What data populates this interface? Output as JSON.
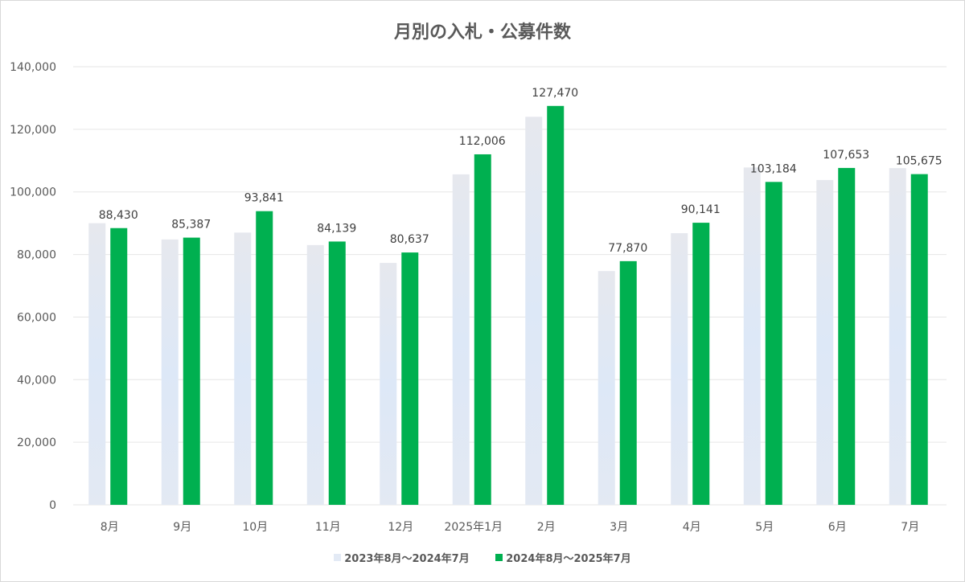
{
  "chart_data": {
    "type": "bar",
    "title": "月別の入札・公募件数",
    "categories": [
      "8月",
      "9月",
      "10月",
      "11月",
      "12月",
      "2025年1月",
      "2月",
      "3月",
      "4月",
      "5月",
      "6月",
      "7月"
    ],
    "series": [
      {
        "name": "2023年8月～2024年7月",
        "color": "#e3eaf5",
        "values": [
          90000,
          84800,
          87000,
          83000,
          77300,
          105600,
          124000,
          74700,
          86800,
          107800,
          103800,
          107600
        ]
      },
      {
        "name": "2024年8月～2025年7月",
        "color": "#00b050",
        "values": [
          88430,
          85387,
          93841,
          84139,
          80637,
          112006,
          127470,
          77870,
          90141,
          103184,
          107653,
          105675
        ],
        "data_labels": [
          "88,430",
          "85,387",
          "93,841",
          "84,139",
          "80,637",
          "112,006",
          "127,470",
          "77,870",
          "90,141",
          "103,184",
          "107,653",
          "105,675"
        ]
      }
    ],
    "yticks": [
      "0",
      "20,000",
      "40,000",
      "60,000",
      "80,000",
      "100,000",
      "120,000",
      "140,000"
    ],
    "ylim": [
      0,
      140000
    ],
    "grid": true,
    "legend": "bottom"
  }
}
